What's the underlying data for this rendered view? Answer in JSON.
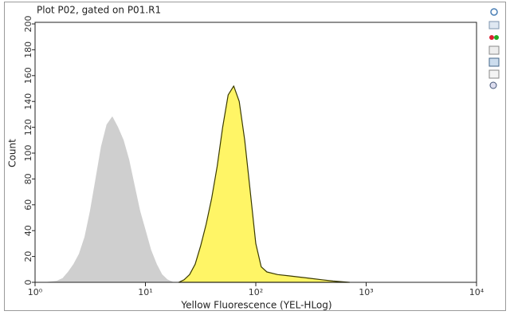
{
  "chart_data": {
    "type": "histogram-area",
    "title": "Plot P02, gated on P01.R1",
    "x_label": "Yellow Fluorescence (YEL-HLog)",
    "y_label": "Count",
    "x_scale": "log",
    "xlim": [
      1,
      10000
    ],
    "xticks": [
      {
        "value": 1,
        "label": "10⁰"
      },
      {
        "value": 10,
        "label": "10¹"
      },
      {
        "value": 100,
        "label": "10²"
      },
      {
        "value": 1000,
        "label": "10³"
      },
      {
        "value": 10000,
        "label": "10⁴"
      }
    ],
    "ylim": [
      0,
      200
    ],
    "yticks": [
      0,
      20,
      40,
      60,
      80,
      100,
      120,
      140,
      160,
      180,
      200
    ],
    "series": [
      {
        "color": "#cfcfcf",
        "x": [
          1.26,
          1.58,
          1.78,
          2.0,
          2.24,
          2.51,
          2.82,
          3.16,
          3.55,
          3.98,
          4.47,
          5.01,
          5.62,
          6.31,
          7.08,
          7.94,
          8.91,
          10,
          11.2,
          12.6,
          14.1,
          15.8,
          17.8
        ],
        "values": [
          0,
          1,
          3,
          8,
          14,
          22,
          35,
          55,
          80,
          105,
          122,
          128,
          120,
          110,
          95,
          75,
          55,
          40,
          25,
          14,
          6,
          2,
          0
        ]
      },
      {
        "color": "#fff566",
        "x": [
          20,
          22.4,
          25.1,
          28.2,
          31.6,
          35.5,
          39.8,
          44.7,
          50.1,
          56.2,
          63.1,
          70.8,
          79.4,
          89.1,
          100,
          112,
          126,
          158,
          200,
          251,
          316,
          398,
          501,
          708
        ],
        "values": [
          0,
          2,
          6,
          14,
          28,
          45,
          65,
          90,
          120,
          145,
          152,
          140,
          110,
          70,
          30,
          12,
          8,
          6,
          5,
          4,
          3,
          2,
          1,
          0
        ]
      }
    ]
  }
}
